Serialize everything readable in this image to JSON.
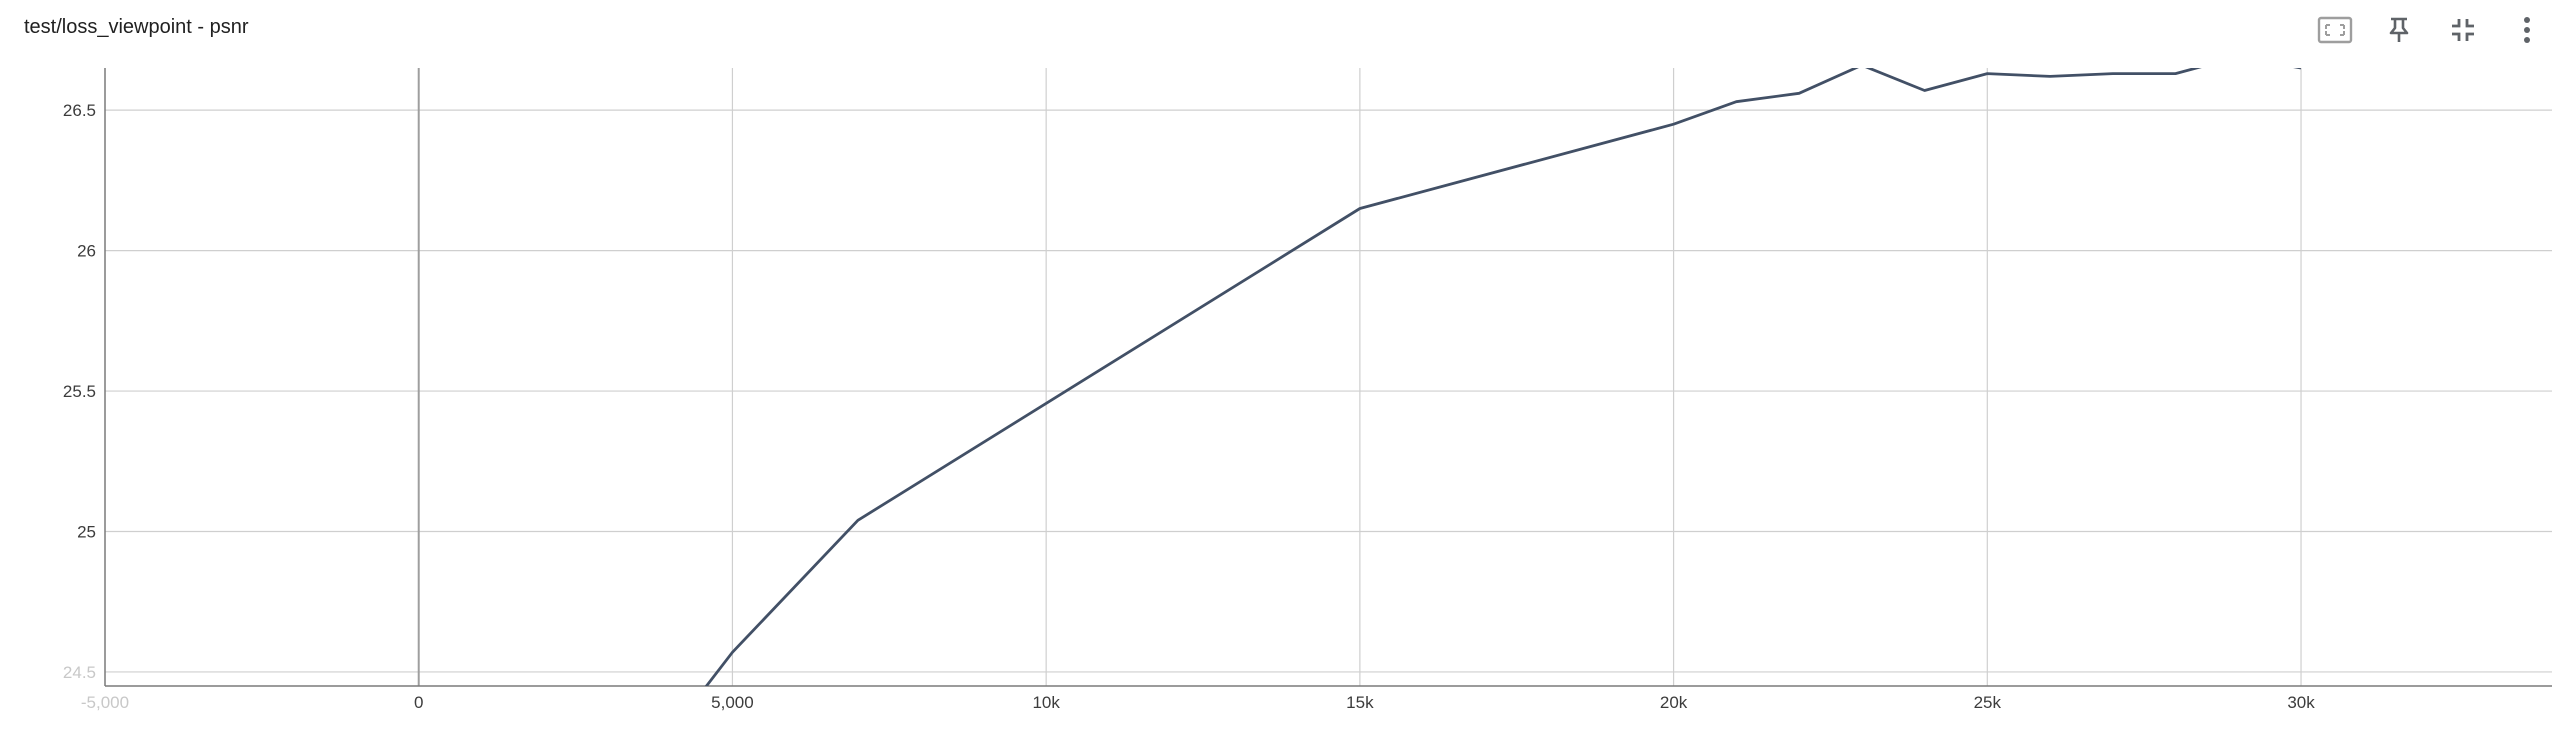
{
  "card": {
    "title": "test/loss_viewpoint - psnr"
  },
  "toolbar": [
    {
      "name": "fit-domain-button",
      "icon": "fit-to-data-icon"
    },
    {
      "name": "pin-button",
      "icon": "pin-icon"
    },
    {
      "name": "collapse-button",
      "icon": "collapse-icon"
    },
    {
      "name": "more-options-button",
      "icon": "more-vert-icon"
    }
  ],
  "chart_data": {
    "type": "line",
    "title": "test/loss_viewpoint - psnr",
    "xlabel": "",
    "ylabel": "",
    "xlim": [
      -5000,
      34000
    ],
    "ylim": [
      24.45,
      26.65
    ],
    "grid": true,
    "line_color": "#425066",
    "x_ticks": [
      {
        "value": -5000,
        "label": "-5,000",
        "faded": true
      },
      {
        "value": 0,
        "label": "0"
      },
      {
        "value": 5000,
        "label": "5,000"
      },
      {
        "value": 10000,
        "label": "10k"
      },
      {
        "value": 15000,
        "label": "15k"
      },
      {
        "value": 20000,
        "label": "20k"
      },
      {
        "value": 25000,
        "label": "25k"
      },
      {
        "value": 30000,
        "label": "30k"
      }
    ],
    "y_ticks": [
      {
        "value": 24.5,
        "label": "24.5",
        "faded": true
      },
      {
        "value": 25,
        "label": "25"
      },
      {
        "value": 25.5,
        "label": "25.5"
      },
      {
        "value": 26,
        "label": "26"
      },
      {
        "value": 26.5,
        "label": "26.5"
      }
    ],
    "series": [
      {
        "x": [
          4000,
          5000,
          7000,
          15000,
          20000,
          21000,
          22000,
          23000,
          24000,
          25000,
          26000,
          27000,
          28000,
          29000,
          30000
        ],
        "y": [
          24.28,
          24.57,
          25.04,
          26.15,
          26.45,
          26.53,
          26.56,
          26.66,
          26.57,
          26.63,
          26.62,
          26.63,
          26.63,
          26.69,
          26.65
        ]
      }
    ]
  }
}
